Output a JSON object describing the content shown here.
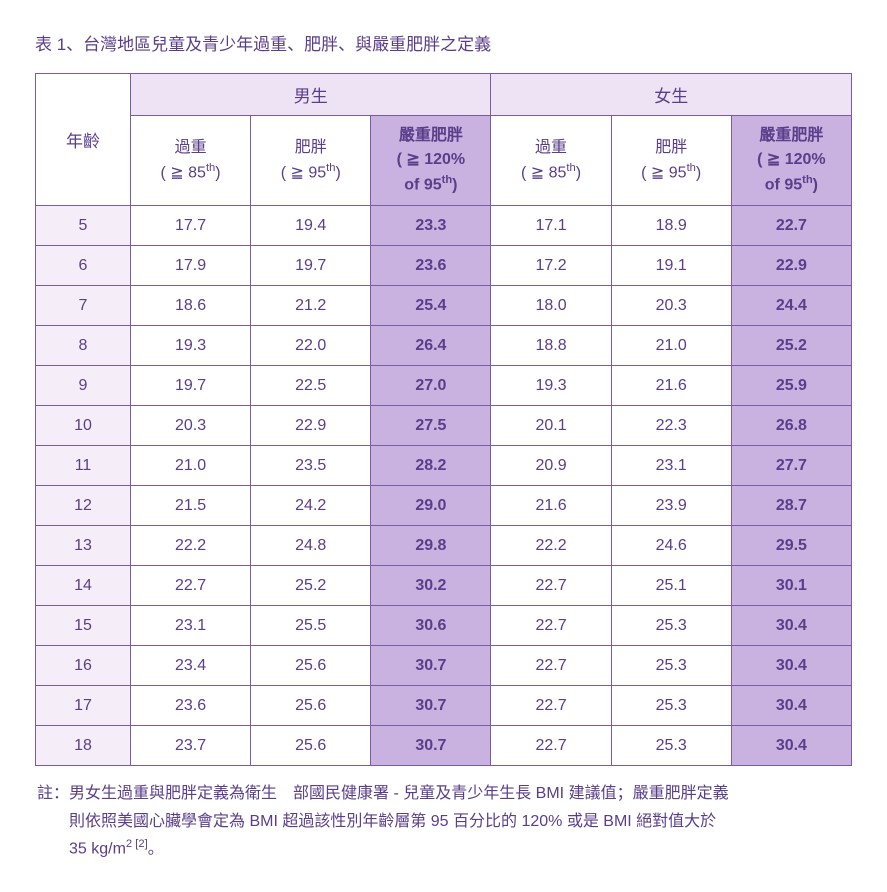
{
  "title": "表 1、台灣地區兒童及青少年過重、肥胖、與嚴重肥胖之定義",
  "headers": {
    "male": "男生",
    "female": "女生",
    "age": "年齡",
    "overweight_label": "過重",
    "overweight_thresh": "( ≧ 85",
    "obese_label": "肥胖",
    "obese_thresh": "( ≧ 95",
    "severe_label": "嚴重肥胖",
    "severe_thresh1": "( ≧ 120%",
    "severe_thresh2": "of 95",
    "th_suffix": "th",
    "close_paren": ")"
  },
  "rows": [
    {
      "age": "5",
      "m_ow": "17.7",
      "m_ob": "19.4",
      "m_sv": "23.3",
      "f_ow": "17.1",
      "f_ob": "18.9",
      "f_sv": "22.7"
    },
    {
      "age": "6",
      "m_ow": "17.9",
      "m_ob": "19.7",
      "m_sv": "23.6",
      "f_ow": "17.2",
      "f_ob": "19.1",
      "f_sv": "22.9"
    },
    {
      "age": "7",
      "m_ow": "18.6",
      "m_ob": "21.2",
      "m_sv": "25.4",
      "f_ow": "18.0",
      "f_ob": "20.3",
      "f_sv": "24.4"
    },
    {
      "age": "8",
      "m_ow": "19.3",
      "m_ob": "22.0",
      "m_sv": "26.4",
      "f_ow": "18.8",
      "f_ob": "21.0",
      "f_sv": "25.2"
    },
    {
      "age": "9",
      "m_ow": "19.7",
      "m_ob": "22.5",
      "m_sv": "27.0",
      "f_ow": "19.3",
      "f_ob": "21.6",
      "f_sv": "25.9"
    },
    {
      "age": "10",
      "m_ow": "20.3",
      "m_ob": "22.9",
      "m_sv": "27.5",
      "f_ow": "20.1",
      "f_ob": "22.3",
      "f_sv": "26.8"
    },
    {
      "age": "11",
      "m_ow": "21.0",
      "m_ob": "23.5",
      "m_sv": "28.2",
      "f_ow": "20.9",
      "f_ob": "23.1",
      "f_sv": "27.7"
    },
    {
      "age": "12",
      "m_ow": "21.5",
      "m_ob": "24.2",
      "m_sv": "29.0",
      "f_ow": "21.6",
      "f_ob": "23.9",
      "f_sv": "28.7"
    },
    {
      "age": "13",
      "m_ow": "22.2",
      "m_ob": "24.8",
      "m_sv": "29.8",
      "f_ow": "22.2",
      "f_ob": "24.6",
      "f_sv": "29.5"
    },
    {
      "age": "14",
      "m_ow": "22.7",
      "m_ob": "25.2",
      "m_sv": "30.2",
      "f_ow": "22.7",
      "f_ob": "25.1",
      "f_sv": "30.1"
    },
    {
      "age": "15",
      "m_ow": "23.1",
      "m_ob": "25.5",
      "m_sv": "30.6",
      "f_ow": "22.7",
      "f_ob": "25.3",
      "f_sv": "30.4"
    },
    {
      "age": "16",
      "m_ow": "23.4",
      "m_ob": "25.6",
      "m_sv": "30.7",
      "f_ow": "22.7",
      "f_ob": "25.3",
      "f_sv": "30.4"
    },
    {
      "age": "17",
      "m_ow": "23.6",
      "m_ob": "25.6",
      "m_sv": "30.7",
      "f_ow": "22.7",
      "f_ob": "25.3",
      "f_sv": "30.4"
    },
    {
      "age": "18",
      "m_ow": "23.7",
      "m_ob": "25.6",
      "m_sv": "30.7",
      "f_ow": "22.7",
      "f_ob": "25.3",
      "f_sv": "30.4"
    }
  ],
  "footnote": {
    "prefix": "註：",
    "line1a": "男女生過重與肥胖定義為衛生　部國民健康署 - 兒童及青少年生長 BMI 建議值；嚴重肥胖定義",
    "line2a": "則依照美國心臟學會定為 BMI 超過該性別年齡層第 95 百分比的 120% 或是 BMI 絕對值大於",
    "line3a": "35 kg/m",
    "sup2": "2",
    "ref": " [2]",
    "period": "。"
  },
  "colors": {
    "border": "#7a5ba8",
    "text": "#5a3e8a",
    "header_bg": "#eee3f4",
    "age_bg": "#f5eef9",
    "severe_bg": "#c9b2e0",
    "plain_bg": "#ffffff"
  }
}
